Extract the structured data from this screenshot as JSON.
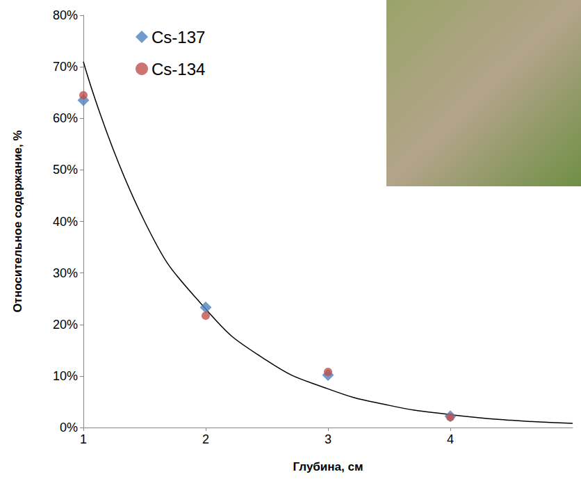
{
  "chart_data": {
    "type": "scatter",
    "x_label": "Глубина, см",
    "y_label": "Относительное содержание, %",
    "series": [
      {
        "name": "Cs-137",
        "color": "#4f81bd",
        "marker": "diamond",
        "x": [
          1,
          2,
          3,
          4
        ],
        "values": [
          63.5,
          23.3,
          10.2,
          2.2
        ]
      },
      {
        "name": "Cs-134",
        "color": "#c0504d",
        "marker": "circle",
        "x": [
          1,
          2,
          3,
          4
        ],
        "values": [
          64.5,
          21.7,
          10.8,
          2.0
        ]
      },
      {
        "type": "line",
        "color": "#000000",
        "line_style": "solid",
        "x": [
          1,
          1.5,
          2,
          2.5,
          3,
          3.5,
          4,
          4.5,
          5
        ],
        "values": [
          71,
          40,
          23,
          13,
          7.5,
          4.3,
          2.5,
          1.4,
          0.8
        ]
      }
    ],
    "xlim": [
      1,
      5
    ],
    "xticks": [
      1,
      2,
      3,
      4
    ],
    "ylim": [
      0,
      80
    ],
    "yticks": [
      {
        "value": 0,
        "label": "0%"
      },
      {
        "value": 10,
        "label": "10%"
      },
      {
        "value": 20,
        "label": "20%"
      },
      {
        "value": 30,
        "label": "30%"
      },
      {
        "value": 40,
        "label": "40%"
      },
      {
        "value": 50,
        "label": "50%"
      },
      {
        "value": 60,
        "label": "60%"
      },
      {
        "value": 70,
        "label": "70%"
      },
      {
        "value": 80,
        "label": "80%"
      }
    ],
    "grid": false,
    "legend": "upper left"
  }
}
